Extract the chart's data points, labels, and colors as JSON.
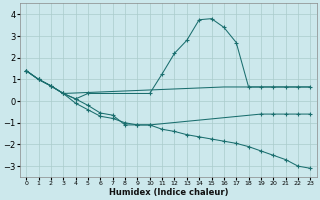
{
  "xlabel": "Humidex (Indice chaleur)",
  "bg_color": "#cce8ec",
  "grid_color": "#aacccc",
  "line_color": "#1a6e6e",
  "xlim": [
    -0.5,
    23.5
  ],
  "ylim": [
    -3.5,
    4.5
  ],
  "yticks": [
    -3,
    -2,
    -1,
    0,
    1,
    2,
    3,
    4
  ],
  "xticks": [
    0,
    1,
    2,
    3,
    4,
    5,
    6,
    7,
    8,
    9,
    10,
    11,
    12,
    13,
    14,
    15,
    16,
    17,
    18,
    19,
    20,
    21,
    22,
    23
  ],
  "series": [
    {
      "x": [
        0,
        1,
        2,
        3,
        4,
        5,
        10,
        11,
        12,
        13,
        14,
        15,
        16,
        17,
        18,
        19,
        20,
        21,
        22,
        23
      ],
      "y": [
        1.4,
        1.0,
        0.7,
        0.35,
        0.1,
        0.35,
        0.35,
        1.25,
        2.2,
        2.8,
        3.75,
        3.8,
        3.4,
        2.7,
        0.65,
        0.65,
        0.65,
        0.65,
        0.65,
        0.65
      ],
      "has_markers": true
    },
    {
      "x": [
        0,
        1,
        2,
        3,
        16,
        17,
        18,
        19,
        20,
        21,
        22,
        23
      ],
      "y": [
        1.4,
        1.0,
        0.7,
        0.35,
        0.65,
        0.65,
        0.65,
        0.65,
        0.65,
        0.65,
        0.65,
        0.65
      ],
      "has_markers": false
    },
    {
      "x": [
        0,
        1,
        2,
        3,
        4,
        5,
        6,
        7,
        8,
        9,
        10,
        19,
        20,
        21,
        22,
        23
      ],
      "y": [
        1.4,
        1.0,
        0.7,
        0.35,
        0.1,
        -0.2,
        -0.55,
        -0.65,
        -1.1,
        -1.1,
        -1.1,
        -0.6,
        -0.6,
        -0.6,
        -0.6,
        -0.6
      ],
      "has_markers": true
    },
    {
      "x": [
        0,
        1,
        2,
        3,
        4,
        5,
        6,
        7,
        8,
        9,
        10,
        11,
        12,
        13,
        14,
        15,
        16,
        17,
        18,
        19,
        20,
        21,
        22,
        23
      ],
      "y": [
        1.4,
        1.0,
        0.7,
        0.35,
        -0.1,
        -0.4,
        -0.7,
        -0.8,
        -1.0,
        -1.1,
        -1.1,
        -1.3,
        -1.4,
        -1.55,
        -1.65,
        -1.75,
        -1.85,
        -1.95,
        -2.1,
        -2.3,
        -2.5,
        -2.7,
        -3.0,
        -3.1
      ],
      "has_markers": true
    }
  ]
}
